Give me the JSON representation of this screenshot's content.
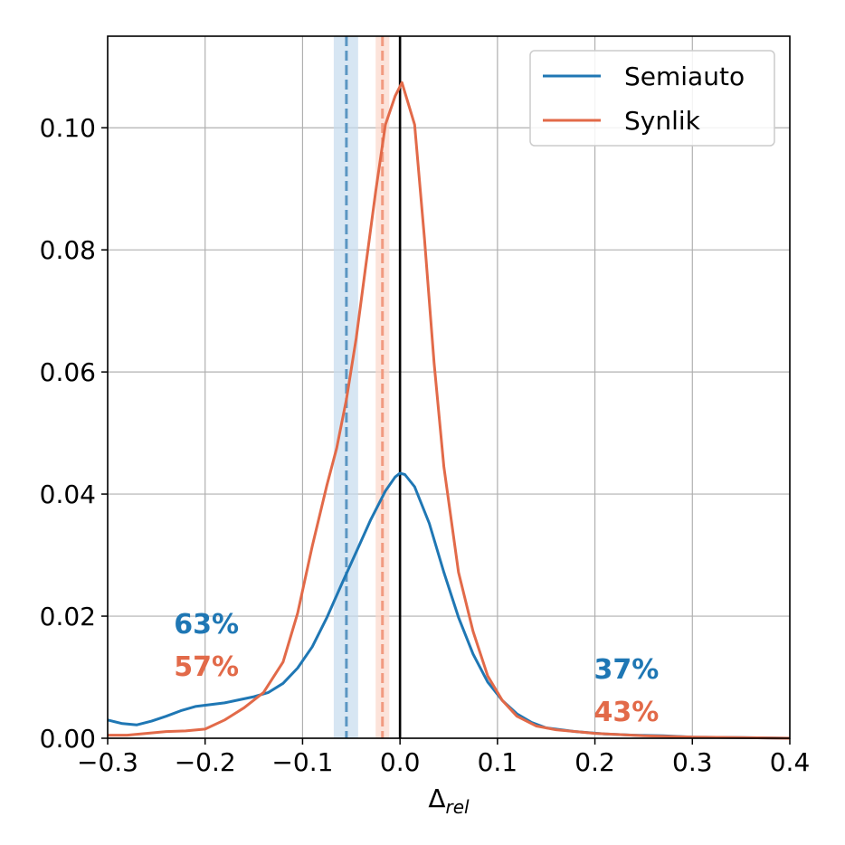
{
  "chart_data": {
    "type": "line",
    "title": "",
    "xlabel_main": "Δ",
    "xlabel_sub": "rel",
    "ylabel": "",
    "xlim": [
      -0.3,
      0.4
    ],
    "ylim": [
      0.0,
      0.115
    ],
    "x_ticks": [
      -0.3,
      -0.2,
      -0.1,
      0.0,
      0.1,
      0.2,
      0.3,
      0.4
    ],
    "x_tick_labels": [
      "−0.3",
      "−0.2",
      "−0.1",
      "0.0",
      "0.1",
      "0.2",
      "0.3",
      "0.4"
    ],
    "y_ticks": [
      0.0,
      0.02,
      0.04,
      0.06,
      0.08,
      0.1
    ],
    "y_tick_labels": [
      "0.00",
      "0.02",
      "0.04",
      "0.06",
      "0.08",
      "0.10"
    ],
    "grid": true,
    "legend_position": "top-right",
    "series": [
      {
        "name": "Semiauto",
        "color": "#1f77b4",
        "x": [
          -0.3,
          -0.285,
          -0.27,
          -0.255,
          -0.24,
          -0.225,
          -0.21,
          -0.195,
          -0.18,
          -0.165,
          -0.15,
          -0.135,
          -0.12,
          -0.105,
          -0.09,
          -0.075,
          -0.06,
          -0.045,
          -0.03,
          -0.015,
          -0.005,
          0.0,
          0.005,
          0.015,
          0.03,
          0.045,
          0.06,
          0.075,
          0.09,
          0.105,
          0.12,
          0.135,
          0.15,
          0.18,
          0.21,
          0.24,
          0.27,
          0.3,
          0.35,
          0.4
        ],
        "y": [
          0.003,
          0.0024,
          0.0022,
          0.0028,
          0.0036,
          0.0045,
          0.0052,
          0.0055,
          0.0058,
          0.0063,
          0.0068,
          0.0075,
          0.009,
          0.0115,
          0.015,
          0.0198,
          0.0252,
          0.0305,
          0.0358,
          0.0405,
          0.0428,
          0.0434,
          0.0432,
          0.0412,
          0.0352,
          0.0272,
          0.0198,
          0.0138,
          0.0092,
          0.0062,
          0.004,
          0.0026,
          0.0017,
          0.0011,
          0.0007,
          0.0005,
          0.0004,
          0.0002,
          0.0001,
          0.0
        ]
      },
      {
        "name": "Synlik",
        "color": "#e26a49",
        "x": [
          -0.3,
          -0.28,
          -0.26,
          -0.24,
          -0.22,
          -0.2,
          -0.18,
          -0.16,
          -0.14,
          -0.12,
          -0.105,
          -0.09,
          -0.075,
          -0.065,
          -0.055,
          -0.045,
          -0.035,
          -0.025,
          -0.015,
          -0.005,
          0.002,
          0.015,
          0.025,
          0.035,
          0.045,
          0.06,
          0.075,
          0.09,
          0.105,
          0.12,
          0.14,
          0.16,
          0.2,
          0.25,
          0.3,
          0.35,
          0.4
        ],
        "y": [
          0.0005,
          0.0005,
          0.0008,
          0.0011,
          0.0012,
          0.0015,
          0.003,
          0.005,
          0.0075,
          0.0125,
          0.0205,
          0.0315,
          0.0415,
          0.0475,
          0.0555,
          0.0655,
          0.0775,
          0.0895,
          0.1005,
          0.1052,
          0.1074,
          0.1005,
          0.082,
          0.0615,
          0.0445,
          0.0272,
          0.0175,
          0.0102,
          0.0062,
          0.0036,
          0.002,
          0.0014,
          0.0008,
          0.0004,
          0.0002,
          0.0001,
          0.0
        ]
      }
    ],
    "vertical_lines": [
      {
        "x": -0.055,
        "color": "#5b96c2",
        "style": "dashed",
        "band": [
          -0.068,
          -0.043
        ],
        "band_color": "#c6dcee"
      },
      {
        "x": -0.018,
        "color": "#f19a80",
        "style": "dashed",
        "band": [
          -0.025,
          -0.011
        ],
        "band_color": "#fbd7cb"
      },
      {
        "x": 0.0,
        "color": "#000000",
        "style": "solid"
      }
    ],
    "annotations": [
      {
        "text": "63%",
        "color": "#1f77b4",
        "x": -0.232,
        "y": 0.0172
      },
      {
        "text": "57%",
        "color": "#e26a49",
        "x": -0.232,
        "y": 0.0102
      },
      {
        "text": "37%",
        "color": "#1f77b4",
        "x": 0.199,
        "y": 0.0098
      },
      {
        "text": "43%",
        "color": "#e26a49",
        "x": 0.199,
        "y": 0.0028
      }
    ]
  }
}
